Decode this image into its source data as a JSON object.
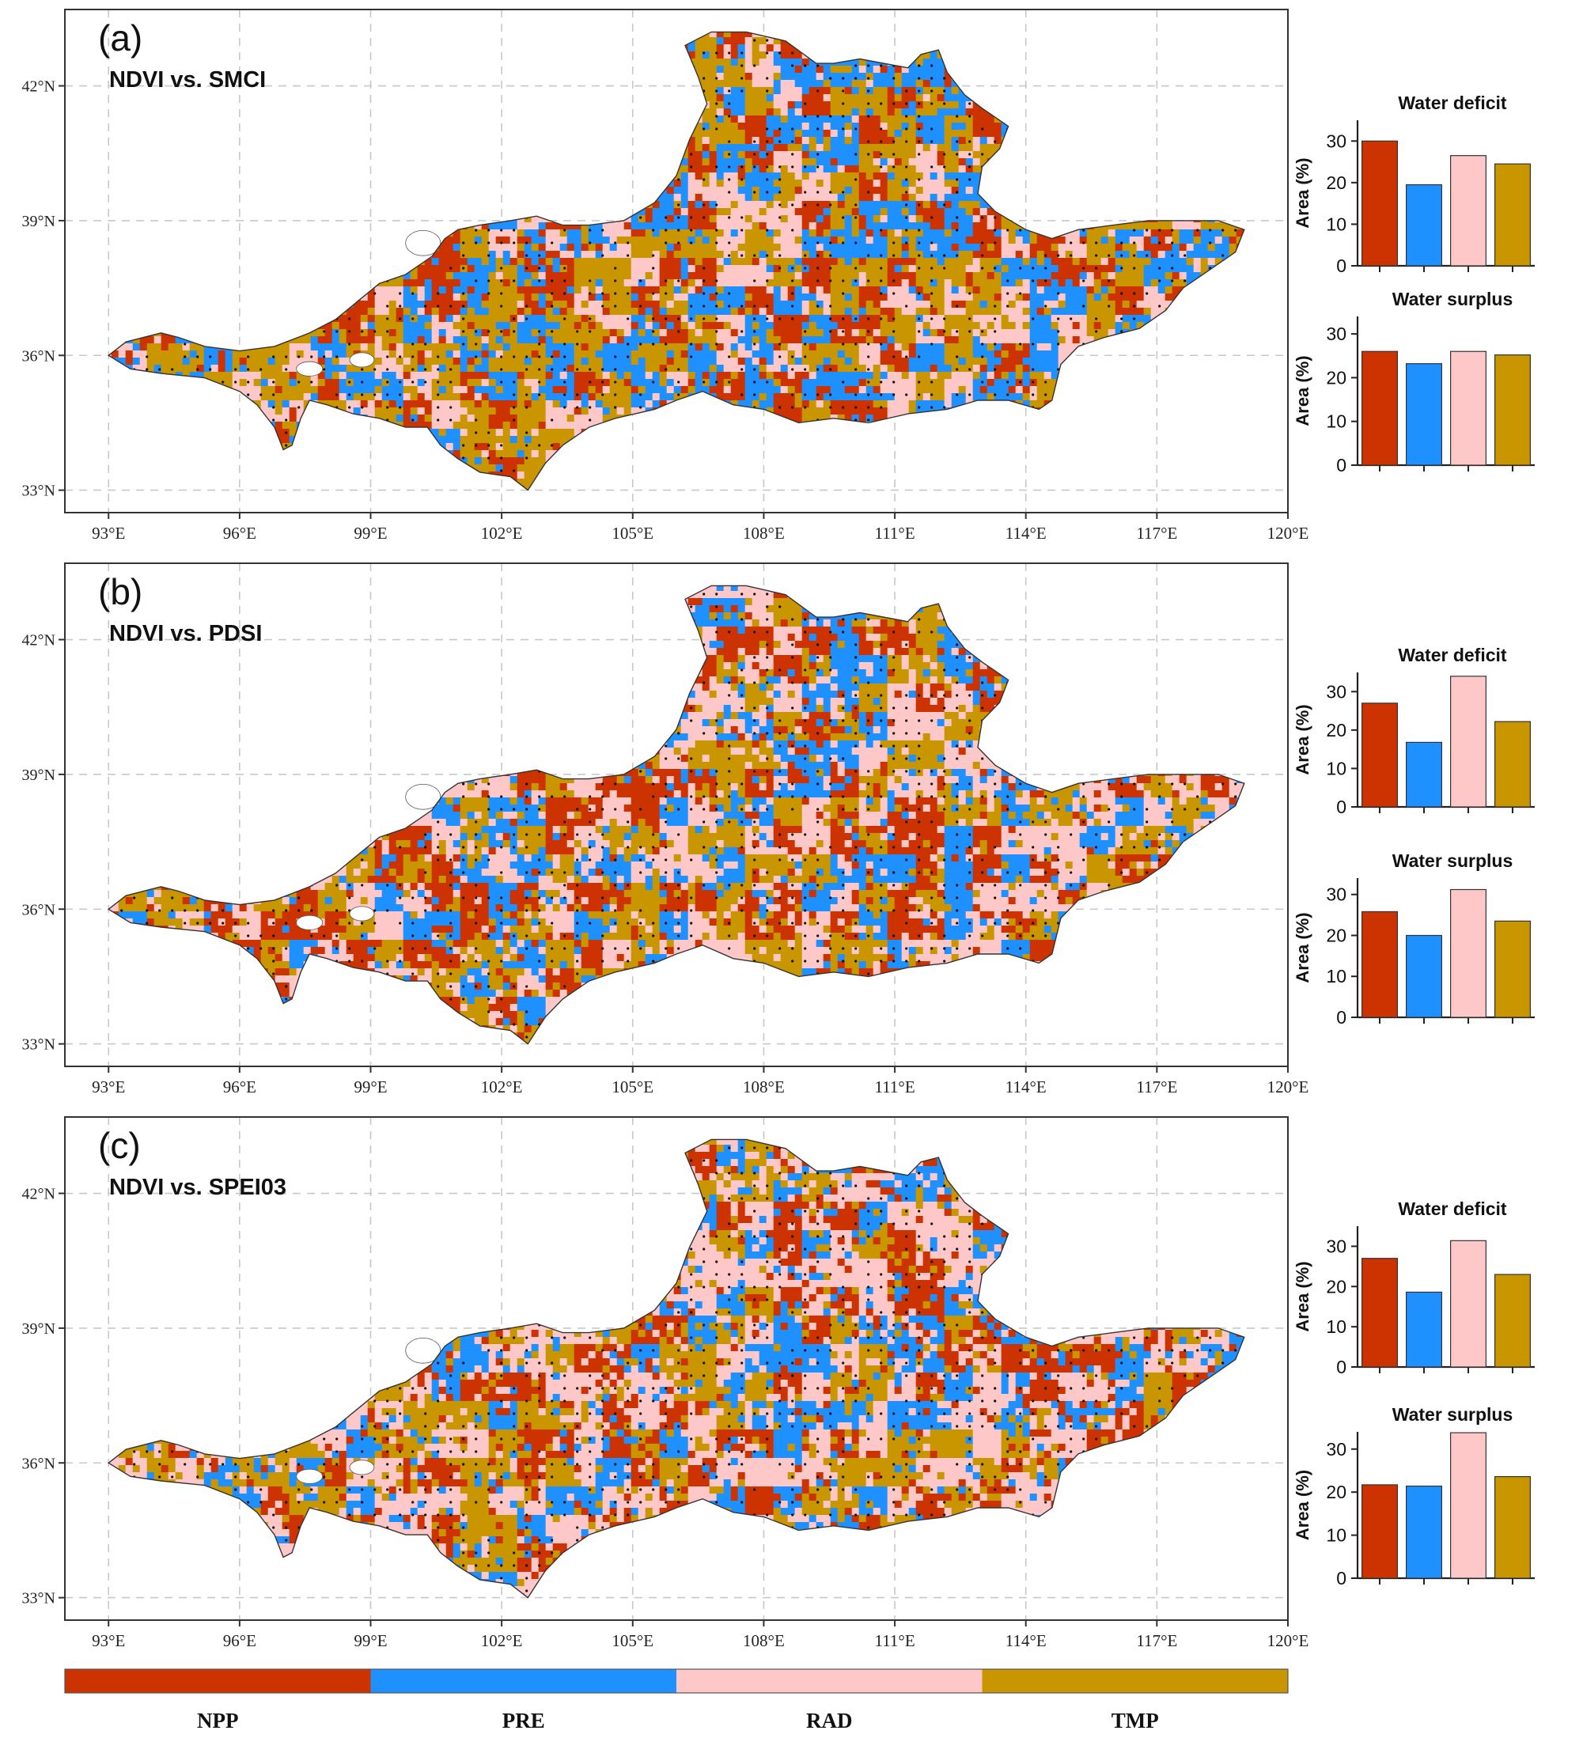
{
  "colors": {
    "NPP": "#cc3300",
    "PRE": "#1e90ff",
    "RAD": "#ffc8c8",
    "TMP": "#c99600",
    "grid": "#c8c8c8",
    "frame": "#333333"
  },
  "legend": {
    "items": [
      {
        "key": "NPP",
        "label": "NPP"
      },
      {
        "key": "PRE",
        "label": "PRE"
      },
      {
        "key": "RAD",
        "label": "RAD"
      },
      {
        "key": "TMP",
        "label": "TMP"
      }
    ]
  },
  "map_axes": {
    "lon_range": [
      92,
      120
    ],
    "lat_range": [
      32.5,
      43.7
    ],
    "x_ticks": [
      "93°E",
      "96°E",
      "99°E",
      "102°E",
      "105°E",
      "108°E",
      "111°E",
      "114°E",
      "117°E",
      "120°E"
    ],
    "y_ticks": [
      "42°N",
      "39°N",
      "36°N",
      "33°N"
    ],
    "grid": true,
    "grid_style": "dashed"
  },
  "panels": [
    {
      "letter": "(a)",
      "title": "NDVI vs. SMCI",
      "map_legend_note": "",
      "dominant": "TMP",
      "secondary": "PRE"
    },
    {
      "letter": "(b)",
      "title": "NDVI vs. PDSI",
      "dominant": "RAD",
      "secondary": "TMP"
    },
    {
      "letter": "(c)",
      "title": "NDVI vs. SPEI03",
      "dominant": "RAD",
      "secondary": "TMP"
    }
  ],
  "chart_data": [
    {
      "type": "bar",
      "panel": "(a)",
      "title": "Water deficit",
      "ylabel": "Area (%)",
      "ylim": [
        0,
        35
      ],
      "yticks": [
        0,
        10,
        20,
        30
      ],
      "categories": [
        "NPP",
        "PRE",
        "RAD",
        "TMP"
      ],
      "values": [
        30,
        19.5,
        26.5,
        24.5
      ]
    },
    {
      "type": "bar",
      "panel": "(a)",
      "title": "Water surplus",
      "ylabel": "Area (%)",
      "ylim": [
        0,
        34
      ],
      "yticks": [
        0,
        10,
        20,
        30
      ],
      "categories": [
        "NPP",
        "PRE",
        "RAD",
        "TMP"
      ],
      "values": [
        26,
        23.2,
        26,
        25.2
      ]
    },
    {
      "type": "bar",
      "panel": "(b)",
      "title": "Water deficit",
      "ylabel": "Area (%)",
      "ylim": [
        0,
        35
      ],
      "yticks": [
        0,
        10,
        20,
        30
      ],
      "categories": [
        "NPP",
        "PRE",
        "RAD",
        "TMP"
      ],
      "values": [
        27,
        16.8,
        34,
        22.2
      ]
    },
    {
      "type": "bar",
      "panel": "(b)",
      "title": "Water surplus",
      "ylabel": "Area (%)",
      "ylim": [
        0,
        34
      ],
      "yticks": [
        0,
        10,
        20,
        30
      ],
      "categories": [
        "NPP",
        "PRE",
        "RAD",
        "TMP"
      ],
      "values": [
        25.8,
        20,
        31.2,
        23.5
      ]
    },
    {
      "type": "bar",
      "panel": "(c)",
      "title": "Water deficit",
      "ylabel": "Area (%)",
      "ylim": [
        0,
        35
      ],
      "yticks": [
        0,
        10,
        20,
        30
      ],
      "categories": [
        "NPP",
        "PRE",
        "RAD",
        "TMP"
      ],
      "values": [
        27,
        18.6,
        31.4,
        23
      ]
    },
    {
      "type": "bar",
      "panel": "(c)",
      "title": "Water surplus",
      "ylabel": "Area (%)",
      "ylim": [
        0,
        34
      ],
      "yticks": [
        0,
        10,
        20,
        30
      ],
      "categories": [
        "NPP",
        "PRE",
        "RAD",
        "TMP"
      ],
      "values": [
        21.7,
        21.4,
        33.8,
        23.6
      ]
    }
  ]
}
